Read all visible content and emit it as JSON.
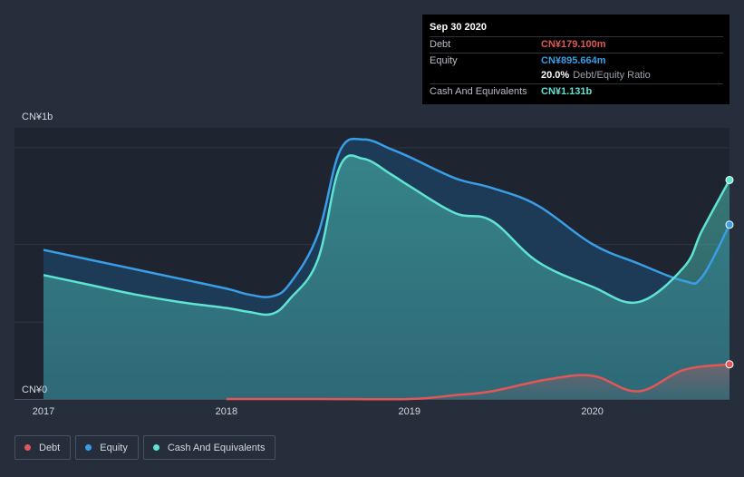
{
  "tooltip": {
    "date": "Sep 30 2020",
    "rows": [
      {
        "label": "Debt",
        "value": "CN¥179.100m",
        "color": "#e15759"
      },
      {
        "label": "Equity",
        "value": "CN¥895.664m",
        "color": "#3a9ee6"
      },
      {
        "ratio_value": "20.0%",
        "ratio_label": "Debt/Equity Ratio"
      },
      {
        "label": "Cash And Equivalents",
        "value": "CN¥1.131b",
        "color": "#5fe3d2"
      }
    ]
  },
  "legend": [
    {
      "label": "Debt",
      "color": "#e15759"
    },
    {
      "label": "Equity",
      "color": "#3a9ee6"
    },
    {
      "label": "Cash And Equivalents",
      "color": "#5fe3d2"
    }
  ],
  "chart_data": {
    "type": "area",
    "title": "",
    "xlabel": "",
    "ylabel": "",
    "y_tick_labels": [
      "CN¥1b",
      "CN¥0"
    ],
    "y_ticks": [
      1.4,
      0
    ],
    "ylim": [
      0,
      1.4
    ],
    "xlim": [
      2017.0,
      2020.75
    ],
    "x_ticks": [
      2017,
      2018,
      2019,
      2020
    ],
    "x_tick_labels": [
      "2017",
      "2018",
      "2019",
      "2020"
    ],
    "series": [
      {
        "name": "Equity",
        "color": "#3a9ee6",
        "x": [
          2017.0,
          2017.25,
          2017.5,
          2017.75,
          2018.0,
          2018.12,
          2018.25,
          2018.35,
          2018.5,
          2018.62,
          2018.75,
          2018.9,
          2019.0,
          2019.25,
          2019.45,
          2019.7,
          2020.0,
          2020.25,
          2020.5,
          2020.6,
          2020.75
        ],
        "values": [
          0.77,
          0.72,
          0.67,
          0.62,
          0.57,
          0.54,
          0.53,
          0.6,
          0.85,
          1.28,
          1.34,
          1.29,
          1.25,
          1.14,
          1.09,
          1.0,
          0.8,
          0.7,
          0.61,
          0.63,
          0.9
        ]
      },
      {
        "name": "Cash And Equivalents",
        "color": "#5fe3d2",
        "x": [
          2017.0,
          2017.25,
          2017.5,
          2017.75,
          2018.0,
          2018.12,
          2018.25,
          2018.35,
          2018.5,
          2018.62,
          2018.75,
          2018.9,
          2019.0,
          2019.25,
          2019.45,
          2019.7,
          2020.0,
          2020.25,
          2020.5,
          2020.6,
          2020.75
        ],
        "values": [
          0.64,
          0.59,
          0.54,
          0.5,
          0.47,
          0.45,
          0.44,
          0.52,
          0.72,
          1.2,
          1.24,
          1.16,
          1.1,
          0.96,
          0.92,
          0.71,
          0.58,
          0.5,
          0.68,
          0.87,
          1.131
        ]
      },
      {
        "name": "Debt",
        "color": "#e15759",
        "x": [
          2018.0,
          2018.5,
          2019.0,
          2019.25,
          2019.45,
          2019.75,
          2020.0,
          2020.25,
          2020.5,
          2020.75
        ],
        "values": [
          0.0,
          0.0,
          0.0,
          0.02,
          0.04,
          0.1,
          0.12,
          0.04,
          0.15,
          0.179
        ]
      }
    ]
  }
}
